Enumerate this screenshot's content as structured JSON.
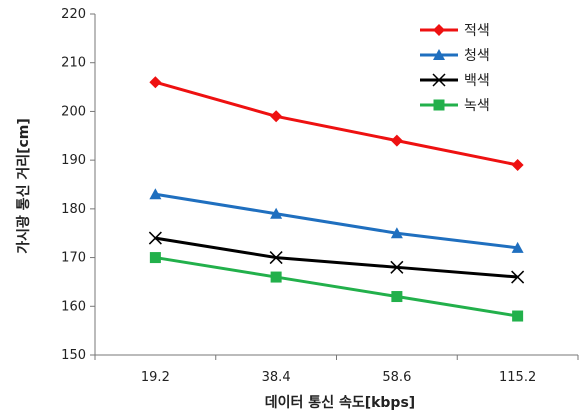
{
  "chart_data": {
    "type": "line",
    "title": "",
    "xlabel": "데이터 통신 속도[kbps]",
    "ylabel": "가시광 통신 거리[cm]",
    "categories": [
      "19.2",
      "38.4",
      "58.6",
      "115.2"
    ],
    "ylim": [
      150,
      220
    ],
    "yticks": [
      "150",
      "160",
      "170",
      "180",
      "190",
      "200",
      "210",
      "220"
    ],
    "grid": false,
    "legend_position": "top-right",
    "series": [
      {
        "name": "적색",
        "values": [
          206,
          199,
          194,
          189
        ],
        "color": "#ee1111",
        "marker": "diamond"
      },
      {
        "name": "청색",
        "values": [
          183,
          179,
          175,
          172
        ],
        "color": "#1f6fbf",
        "marker": "triangle"
      },
      {
        "name": "백색",
        "values": [
          174,
          170,
          168,
          166
        ],
        "color": "#000000",
        "marker": "x"
      },
      {
        "name": "녹색",
        "values": [
          170,
          166,
          162,
          158
        ],
        "color": "#22b04b",
        "marker": "square"
      }
    ]
  }
}
